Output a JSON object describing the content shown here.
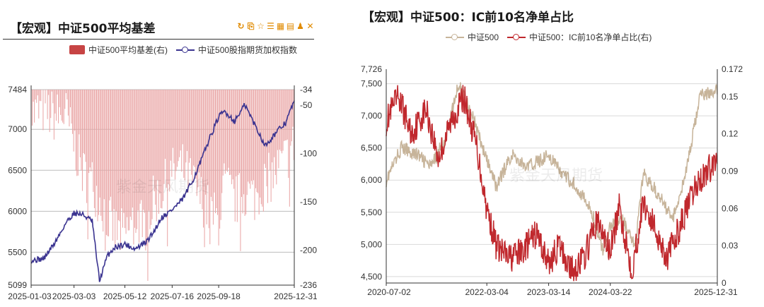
{
  "left": {
    "title": "【宏观】中证500平均基差",
    "toolbar": [
      {
        "name": "refresh-icon",
        "glyph": "↻"
      },
      {
        "name": "copy-icon",
        "glyph": "⎘"
      },
      {
        "name": "star-icon",
        "glyph": "☆"
      },
      {
        "name": "list-icon",
        "glyph": "☰"
      },
      {
        "name": "table-icon",
        "glyph": "▦"
      },
      {
        "name": "file-icon",
        "glyph": "▤"
      },
      {
        "name": "bell-icon",
        "glyph": "♟"
      },
      {
        "name": "expand-icon",
        "glyph": "✕"
      }
    ],
    "legend": [
      "中证500平均基差(右)",
      "中证500股指期货加权指数"
    ],
    "watermark": "紫金天风期货",
    "colors": {
      "bars": "#e9a3a3",
      "line": "#3a3390",
      "axis": "#333333"
    }
  },
  "right": {
    "title": "【宏观】中证500：IC前10名净单占比",
    "legend": [
      "中证500",
      "中证500：IC前10名净单占比(右)"
    ],
    "watermark": "紫金天风期货",
    "colors": {
      "index": "#c7b49a",
      "ratio": "#c0282d"
    }
  },
  "chart_data": [
    {
      "type": "bar+line",
      "title": "【宏观】中证500平均基差",
      "x_tick_labels": [
        "2025-01-03",
        "2025-03-03",
        "2025-05-12",
        "2025-07-16",
        "2025-09-18",
        "2025-12-31"
      ],
      "x_range": [
        "2025-01-03",
        "2025-12-31"
      ],
      "y_left": {
        "ticks": [
          5099,
          5500,
          6000,
          6500,
          7000,
          7484
        ],
        "range": [
          5099,
          7484
        ]
      },
      "y_right": {
        "ticks": [
          -236,
          -200,
          -150,
          -100,
          -50,
          -34
        ],
        "range": [
          -236,
          -34
        ]
      },
      "series": [
        {
          "name": "中证500平均基差(右)",
          "kind": "bar",
          "axis": "right",
          "x": [
            "2025-01-03",
            "2025-01-20",
            "2025-02-05",
            "2025-02-20",
            "2025-03-03",
            "2025-03-15",
            "2025-03-28",
            "2025-04-08",
            "2025-04-18",
            "2025-04-28",
            "2025-05-12",
            "2025-05-26",
            "2025-06-10",
            "2025-06-20",
            "2025-07-01",
            "2025-07-16",
            "2025-07-30",
            "2025-08-12",
            "2025-08-25",
            "2025-09-05",
            "2025-09-18",
            "2025-09-26",
            "2025-10-10",
            "2025-10-24",
            "2025-11-07",
            "2025-11-21",
            "2025-12-05",
            "2025-12-19",
            "2025-12-31"
          ],
          "values": [
            -60,
            -55,
            -62,
            -60,
            -90,
            -120,
            -130,
            -150,
            -165,
            -180,
            -185,
            -165,
            -175,
            -150,
            -140,
            -120,
            -115,
            -130,
            -145,
            -160,
            -170,
            -130,
            -150,
            -140,
            -145,
            -130,
            -120,
            -105,
            -90
          ]
        },
        {
          "name": "中证500股指期货加权指数",
          "kind": "line",
          "axis": "left",
          "x": [
            "2025-01-03",
            "2025-01-20",
            "2025-02-05",
            "2025-02-20",
            "2025-03-03",
            "2025-03-15",
            "2025-03-28",
            "2025-04-07",
            "2025-04-18",
            "2025-04-28",
            "2025-05-12",
            "2025-05-26",
            "2025-06-10",
            "2025-06-20",
            "2025-07-01",
            "2025-07-16",
            "2025-07-30",
            "2025-08-12",
            "2025-08-25",
            "2025-09-05",
            "2025-09-18",
            "2025-09-26",
            "2025-10-10",
            "2025-10-24",
            "2025-11-07",
            "2025-11-21",
            "2025-12-05",
            "2025-12-19",
            "2025-12-31"
          ],
          "values": [
            5400,
            5420,
            5620,
            5860,
            5980,
            5960,
            5880,
            5150,
            5460,
            5560,
            5600,
            5540,
            5620,
            5740,
            5920,
            6020,
            6140,
            6350,
            6620,
            6880,
            7150,
            7220,
            7100,
            7300,
            7050,
            6800,
            6950,
            7080,
            7350
          ]
        }
      ]
    },
    {
      "type": "line",
      "title": "【宏观】中证500：IC前10名净单占比",
      "x_tick_labels": [
        "2020-07-02",
        "2022-03-04",
        "2023-03-14",
        "2024-03-22",
        "2025-12-31"
      ],
      "x_range": [
        "2020-07-02",
        "2025-12-31"
      ],
      "y_left": {
        "ticks": [
          4500,
          5000,
          5500,
          6000,
          6500,
          7000,
          7500,
          7726
        ],
        "range": [
          4400,
          7726
        ]
      },
      "y_right": {
        "ticks": [
          0,
          0.03,
          0.06,
          0.09,
          0.12,
          0.15,
          0.172
        ],
        "range": [
          0,
          0.172
        ]
      },
      "series": [
        {
          "name": "中证500",
          "axis": "left",
          "x": [
            "2020-07-02",
            "2020-10-01",
            "2021-01-04",
            "2021-04-01",
            "2021-07-01",
            "2021-09-15",
            "2021-12-01",
            "2022-03-04",
            "2022-05-01",
            "2022-08-01",
            "2022-11-01",
            "2023-01-15",
            "2023-03-14",
            "2023-06-01",
            "2023-09-01",
            "2023-12-01",
            "2024-02-05",
            "2024-03-22",
            "2024-06-01",
            "2024-08-20",
            "2024-10-08",
            "2025-01-01",
            "2025-04-07",
            "2025-07-01",
            "2025-09-15",
            "2025-12-31"
          ],
          "values": [
            6000,
            6500,
            6400,
            6200,
            6700,
            7500,
            7050,
            6300,
            5900,
            6400,
            6200,
            6300,
            6400,
            6100,
            5900,
            5500,
            4900,
            5300,
            5400,
            4950,
            6100,
            5800,
            5400,
            6200,
            7300,
            7400
          ]
        },
        {
          "name": "中证500：IC前10名净单占比(右)",
          "axis": "right",
          "x": [
            "2020-07-02",
            "2020-09-15",
            "2020-12-01",
            "2021-03-01",
            "2021-05-15",
            "2021-08-01",
            "2021-10-15",
            "2022-01-01",
            "2022-03-04",
            "2022-05-01",
            "2022-07-15",
            "2022-10-01",
            "2023-01-01",
            "2023-03-14",
            "2023-05-15",
            "2023-08-01",
            "2023-10-15",
            "2024-01-01",
            "2024-03-22",
            "2024-05-15",
            "2024-08-01",
            "2024-10-08",
            "2024-12-15",
            "2025-03-01",
            "2025-06-01",
            "2025-09-01",
            "2025-12-31"
          ],
          "values": [
            0.13,
            0.15,
            0.12,
            0.14,
            0.1,
            0.13,
            0.15,
            0.11,
            0.06,
            0.03,
            0.02,
            0.025,
            0.04,
            0.015,
            0.03,
            0.01,
            0.02,
            0.05,
            0.025,
            0.06,
            0.01,
            0.065,
            0.045,
            0.02,
            0.05,
            0.08,
            0.1
          ]
        }
      ]
    }
  ]
}
